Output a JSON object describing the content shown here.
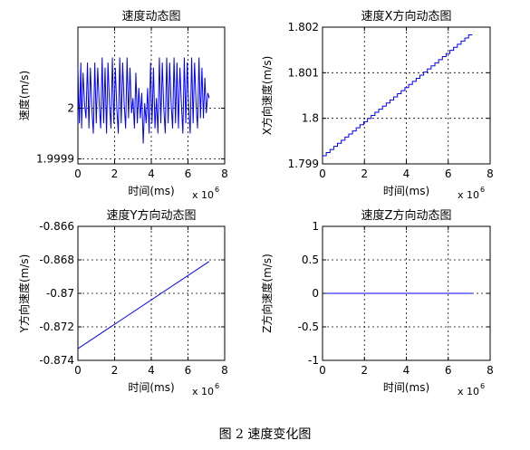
{
  "caption": "图 2  速度变化图",
  "chart_data": [
    {
      "type": "line",
      "title": "速度动态图",
      "xlabel": "时间(ms)",
      "ylabel": "速度(m/s)",
      "x_multiplier": "x 10",
      "x_multiplier_exp": "6",
      "xlim": [
        0,
        8
      ],
      "ylim": [
        1.99989,
        2.00016
      ],
      "xticks": [
        0,
        2,
        4,
        6,
        8
      ],
      "xtick_labels": [
        "0",
        "2",
        "4",
        "6",
        "8"
      ],
      "yticks": [
        1.9999,
        2
      ],
      "ytick_labels": [
        "1.9999",
        "2"
      ],
      "grid": true,
      "series": [
        {
          "x": [
            0,
            0.08,
            0.16,
            0.2,
            0.28,
            0.36,
            0.44,
            0.52,
            0.6,
            0.68,
            0.76,
            0.84,
            0.92,
            1.0,
            1.08,
            1.16,
            1.24,
            1.32,
            1.4,
            1.48,
            1.56,
            1.64,
            1.72,
            1.8,
            1.88,
            1.96,
            2.04,
            2.12,
            2.2,
            2.28,
            2.36,
            2.44,
            2.52,
            2.6,
            2.68,
            2.76,
            2.84,
            2.92,
            3.0,
            3.08,
            3.16,
            3.24,
            3.32,
            3.4,
            3.48,
            3.56,
            3.64,
            3.72,
            3.8,
            3.88,
            3.96,
            4.04,
            4.12,
            4.2,
            4.28,
            4.36,
            4.44,
            4.52,
            4.6,
            4.68,
            4.76,
            4.84,
            4.92,
            5.0,
            5.08,
            5.16,
            5.24,
            5.32,
            5.4,
            5.48,
            5.56,
            5.64,
            5.72,
            5.8,
            5.88,
            5.96,
            6.04,
            6.12,
            6.2,
            6.28,
            6.36,
            6.44,
            6.52,
            6.6,
            6.68,
            6.76,
            6.84,
            6.92,
            7.0,
            7.08,
            7.16
          ],
          "y": [
            2.00008,
            1.99997,
            2.00009,
            1.99996,
            2.00007,
            2.00001,
            1.99998,
            2.00009,
            1.99996,
            2.00008,
            2.0,
            1.99995,
            2.00009,
            1.99997,
            2.00008,
            2.00001,
            1.99996,
            2.0001,
            1.99997,
            2.00008,
            1.99995,
            2.00009,
            2.00001,
            1.99996,
            2.0001,
            1.99997,
            2.00008,
            2.0,
            1.99995,
            2.0001,
            1.99997,
            2.00009,
            2.00001,
            1.99996,
            2.0001,
            1.99998,
            2.00008,
            1.99999,
            2.00002,
            1.99996,
            2.00007,
            1.99997,
            2.00004,
            1.99998,
            2.00003,
            1.99993,
            2.00001,
            1.99997,
            2.00004,
            1.99995,
            2.00009,
            1.99997,
            2.00008,
            1.99996,
            2.00002,
            1.99995,
            2.0001,
            1.99997,
            2.00009,
            2.0,
            1.99995,
            2.0001,
            1.99997,
            2.00009,
            2.00001,
            1.99996,
            2.0001,
            1.99997,
            2.00009,
            1.99996,
            2.00008,
            2.00001,
            1.99995,
            2.0001,
            1.99997,
            2.00009,
            2.0,
            1.99995,
            2.0001,
            1.99997,
            2.00009,
            2.00001,
            1.99996,
            2.0001,
            1.99998,
            2.00008,
            1.99998,
            2.00006,
            1.99999,
            2.00003,
            2.00002
          ]
        }
      ]
    },
    {
      "type": "line",
      "title": "速度X方向动态图",
      "xlabel": "时间(ms)",
      "ylabel": "X方向速度(m/s)",
      "x_multiplier": "x 10",
      "x_multiplier_exp": "6",
      "xlim": [
        0,
        8
      ],
      "ylim": [
        1.799,
        1.802
      ],
      "xticks": [
        0,
        2,
        4,
        6,
        8
      ],
      "xtick_labels": [
        "0",
        "2",
        "4",
        "6",
        "8"
      ],
      "yticks": [
        1.799,
        1.8,
        1.801,
        1.802
      ],
      "ytick_labels": [
        "1.799",
        "1.8",
        "1.801",
        "1.802"
      ],
      "grid": true,
      "series": [
        {
          "x": [
            0,
            7.15
          ],
          "y": [
            1.79918,
            1.80183
          ],
          "step": true,
          "steps": 40
        }
      ]
    },
    {
      "type": "line",
      "title": "速度Y方向动态图",
      "xlabel": "时间(ms)",
      "ylabel": "Y方向速度(m/s)",
      "x_multiplier": "x 10",
      "x_multiplier_exp": "6",
      "xlim": [
        0,
        8
      ],
      "ylim": [
        -0.874,
        -0.866
      ],
      "xticks": [
        0,
        2,
        4,
        6,
        8
      ],
      "xtick_labels": [
        "0",
        "2",
        "4",
        "6",
        "8"
      ],
      "yticks": [
        -0.874,
        -0.872,
        -0.87,
        -0.868,
        -0.866
      ],
      "ytick_labels": [
        "-0.874",
        "-0.872",
        "-0.87",
        "-0.868",
        "-0.866"
      ],
      "grid": true,
      "series": [
        {
          "x": [
            0,
            7.15
          ],
          "y": [
            -0.8733,
            -0.8681
          ]
        }
      ]
    },
    {
      "type": "line",
      "title": "速度Z方向动态图",
      "xlabel": "时间(ms)",
      "ylabel": "Z方向速度(m/s)",
      "x_multiplier": "x 10",
      "x_multiplier_exp": "6",
      "xlim": [
        0,
        8
      ],
      "ylim": [
        -1,
        1
      ],
      "xticks": [
        0,
        2,
        4,
        6,
        8
      ],
      "xtick_labels": [
        "0",
        "2",
        "4",
        "6",
        "8"
      ],
      "yticks": [
        -1,
        -0.5,
        0,
        0.5,
        1
      ],
      "ytick_labels": [
        "-1",
        "-0.5",
        "0",
        "0.5",
        "1"
      ],
      "grid": true,
      "series": [
        {
          "x": [
            0,
            7.15
          ],
          "y": [
            0,
            0
          ]
        }
      ]
    }
  ]
}
